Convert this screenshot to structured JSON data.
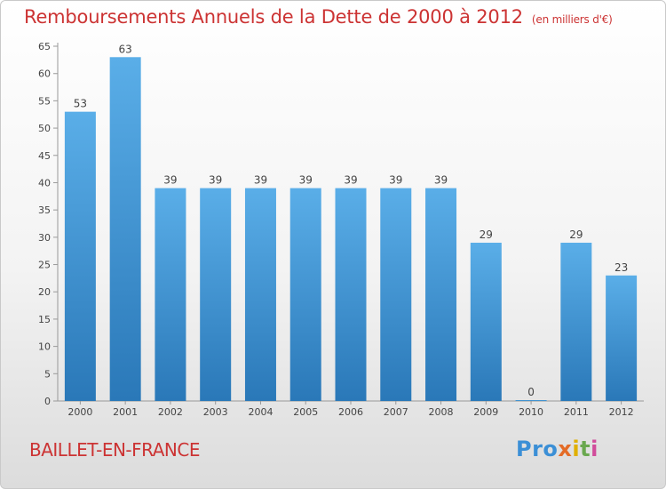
{
  "header": {
    "title": "Remboursements Annuels de la Dette de 2000 à 2012",
    "unit": "(en milliers d'€)"
  },
  "footer": {
    "commune": "BAILLET-EN-FRANCE",
    "logo": [
      "Pro",
      "x",
      "i",
      "t",
      "i"
    ]
  },
  "colors": {
    "title": "#cc3333",
    "bar_top": "#5aaee8",
    "bar_bottom": "#2a78b8"
  },
  "chart_data": {
    "type": "bar",
    "title": "Remboursements Annuels de la Dette de 2000 à 2012",
    "xlabel": "",
    "ylabel": "",
    "categories": [
      "2000",
      "2001",
      "2002",
      "2003",
      "2004",
      "2005",
      "2006",
      "2007",
      "2008",
      "2009",
      "2010",
      "2011",
      "2012"
    ],
    "values": [
      53,
      63,
      39,
      39,
      39,
      39,
      39,
      39,
      39,
      29,
      0,
      29,
      23
    ],
    "ylim": [
      0,
      65
    ],
    "yticks": [
      0,
      5,
      10,
      15,
      20,
      25,
      30,
      35,
      40,
      45,
      50,
      55,
      60,
      65
    ],
    "grid": false,
    "legend": "none"
  }
}
